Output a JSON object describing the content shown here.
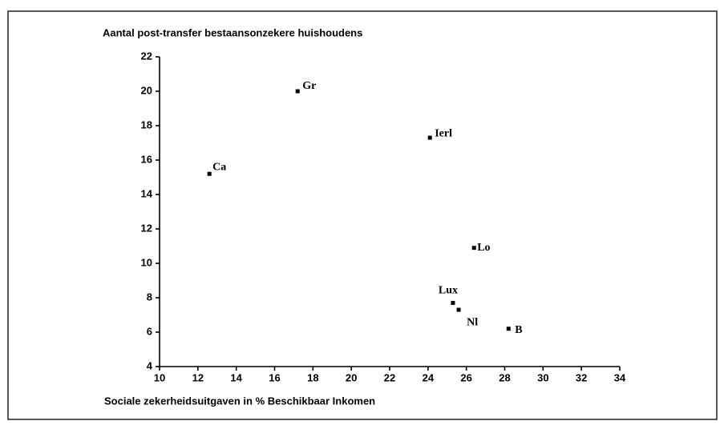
{
  "chart_data": {
    "type": "scatter",
    "y_label": "Aantal post-transfer bestaansonzekere huishoudens",
    "x_label": "Sociale zekerheidsuitgaven in % Beschikbaar Inkomen",
    "labels": [
      "Ca",
      "Gr",
      "Ierl",
      "Lo",
      "Lux",
      "Nl",
      "B"
    ],
    "x": [
      12.6,
      17.2,
      24.1,
      26.4,
      25.3,
      25.6,
      28.2
    ],
    "y": [
      15.2,
      20.0,
      17.3,
      10.9,
      7.7,
      7.3,
      6.2
    ],
    "color": "#000000",
    "xlim": [
      10,
      34
    ],
    "xticks": [
      10,
      12,
      14,
      16,
      18,
      20,
      22,
      24,
      26,
      28,
      30,
      32,
      34
    ],
    "ylim": [
      4,
      22
    ],
    "yticks": [
      4,
      6,
      8,
      10,
      12,
      14,
      16,
      18,
      20,
      22
    ],
    "grid": false
  }
}
